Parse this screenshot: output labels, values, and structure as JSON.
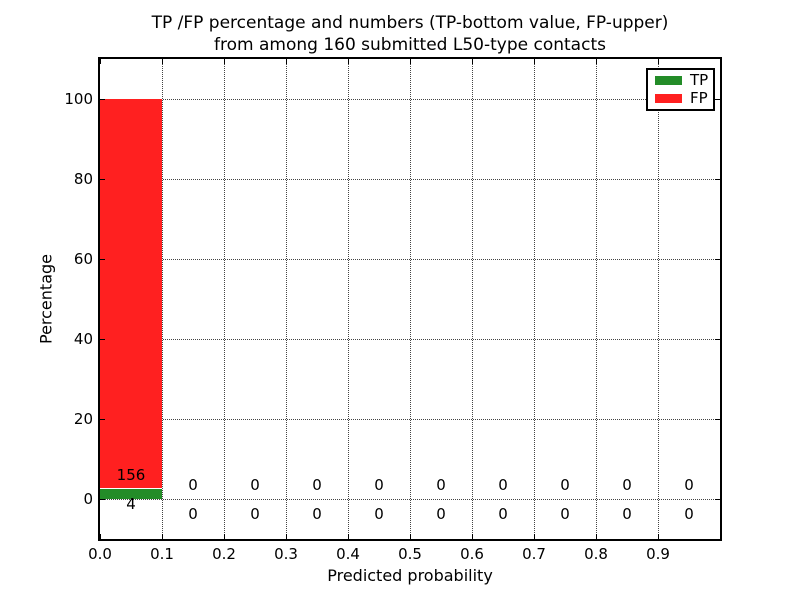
{
  "figure": {
    "title_line1": "TP /FP percentage and numbers (TP-bottom value, FP-upper)",
    "title_line2": "from among 160 submitted L50-type contacts"
  },
  "chart_data": {
    "type": "bar",
    "stacked": true,
    "title": "TP /FP percentage and numbers (TP-bottom value, FP-upper) from among 160 submitted L50-type contacts",
    "xlabel": "Predicted probability",
    "ylabel": "Percentage",
    "total_contacts": 160,
    "bin_width": 0.1,
    "bin_starts": [
      0.0,
      0.1,
      0.2,
      0.3,
      0.4,
      0.5,
      0.6,
      0.7,
      0.8,
      0.9
    ],
    "x_ticks": [
      0.0,
      0.1,
      0.2,
      0.3,
      0.4,
      0.5,
      0.6,
      0.7,
      0.8,
      0.9
    ],
    "x_tick_labels": [
      "0.0",
      "0.1",
      "0.2",
      "0.3",
      "0.4",
      "0.5",
      "0.6",
      "0.7",
      "0.8",
      "0.9"
    ],
    "y_ticks": [
      0,
      20,
      40,
      60,
      80,
      100
    ],
    "y_tick_labels": [
      "0",
      "20",
      "40",
      "60",
      "80",
      "100"
    ],
    "xlim": [
      0.0,
      1.0
    ],
    "ylim": [
      -10,
      110
    ],
    "grid": true,
    "grid_style": "dotted",
    "series": [
      {
        "name": "TP",
        "color": "#238C28",
        "counts": [
          4,
          0,
          0,
          0,
          0,
          0,
          0,
          0,
          0,
          0
        ]
      },
      {
        "name": "FP",
        "color": "#FF2020",
        "counts": [
          156,
          0,
          0,
          0,
          0,
          0,
          0,
          0,
          0,
          0
        ]
      }
    ],
    "bar_value_labels": {
      "fp_row": [
        "156",
        "0",
        "0",
        "0",
        "0",
        "0",
        "0",
        "0",
        "0",
        "0"
      ],
      "tp_row": [
        "4",
        "0",
        "0",
        "0",
        "0",
        "0",
        "0",
        "0",
        "0",
        "0"
      ]
    },
    "legend": {
      "position": "upper right",
      "entries": [
        {
          "label": "TP",
          "color": "#238C28"
        },
        {
          "label": "FP",
          "color": "#FF2020"
        }
      ]
    }
  }
}
